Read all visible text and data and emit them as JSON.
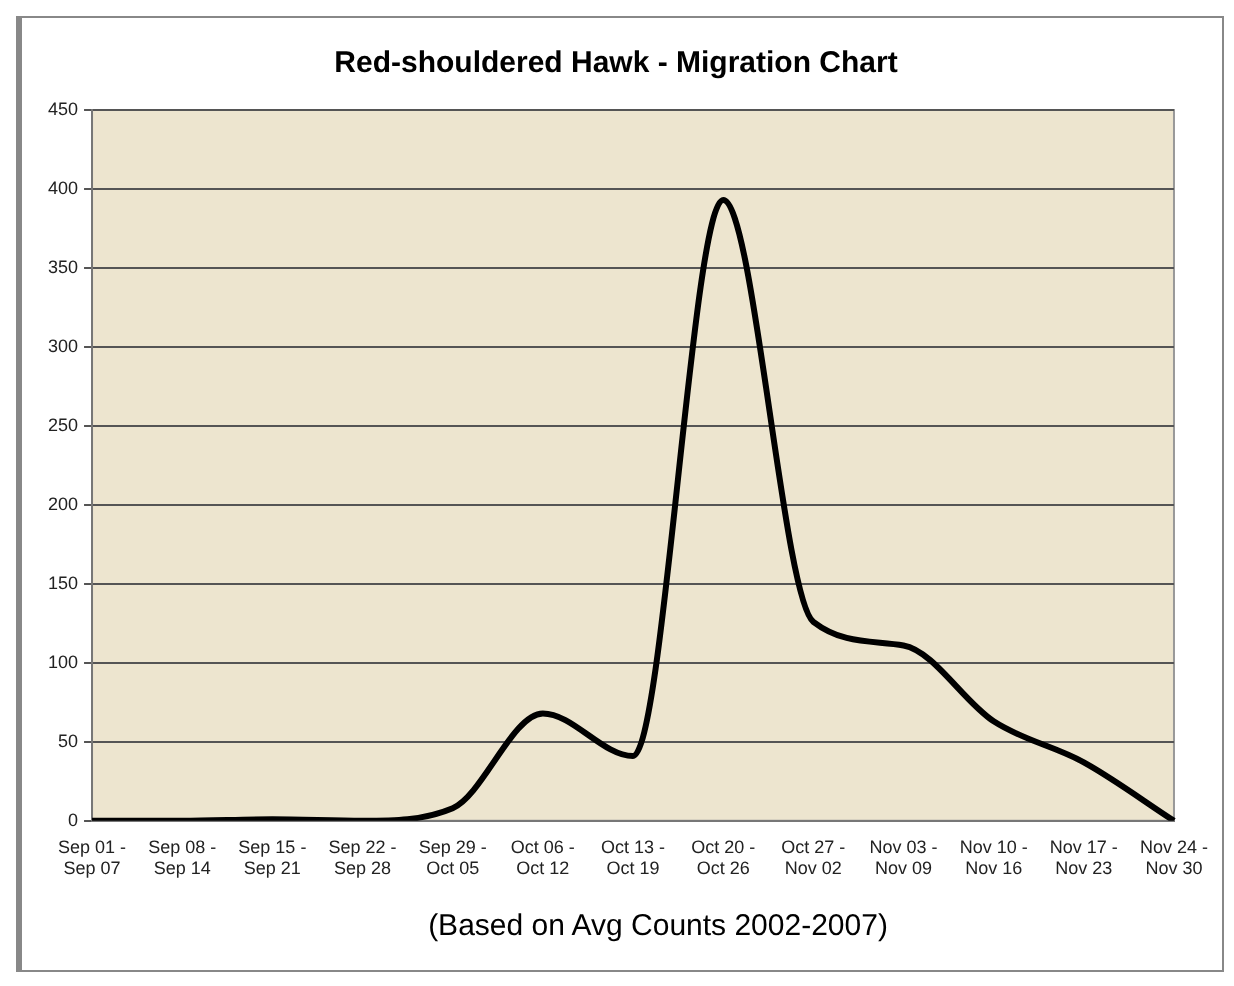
{
  "chart_data": {
    "type": "line",
    "title": "Red-shouldered Hawk - Migration Chart",
    "categories": [
      "Sep 01 - Sep 07",
      "Sep 08 - Sep 14",
      "Sep 15 - Sep 21",
      "Sep 22 - Sep 28",
      "Sep 29 - Oct 05",
      "Oct 06 - Oct 12",
      "Oct 13 - Oct 19",
      "Oct 20 - Oct 26",
      "Oct 27 - Nov 02",
      "Nov 03 - Nov 09",
      "Nov 10 - Nov 16",
      "Nov 17 - Nov 23",
      "Nov 24 - Nov 30"
    ],
    "series": [
      {
        "color": "#000000",
        "values": [
          0,
          0,
          1,
          0,
          8,
          68,
          41,
          393,
          126,
          111,
          63,
          37,
          0
        ]
      }
    ],
    "ylim": [
      0,
      450
    ],
    "yticks": [
      0,
      50,
      100,
      150,
      200,
      250,
      300,
      350,
      400,
      450
    ],
    "grid": "y",
    "legend": false,
    "marker": "none",
    "line_style": "solid",
    "annotations": [
      "(Based on Avg Counts 2002-2007)"
    ]
  }
}
